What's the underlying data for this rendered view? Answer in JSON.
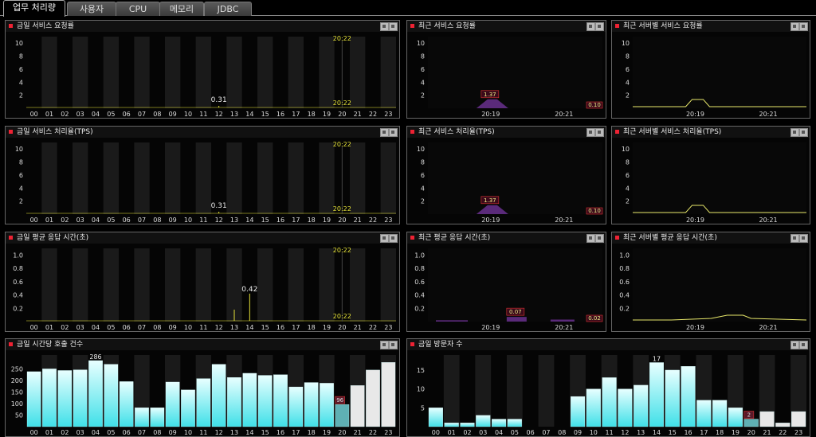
{
  "tabs": [
    {
      "label": "업무 처리량",
      "active": true
    },
    {
      "label": "사용자",
      "active": false
    },
    {
      "label": "CPU",
      "active": false
    },
    {
      "label": "메모리",
      "active": false
    },
    {
      "label": "JDBC",
      "active": false
    }
  ],
  "colors": {
    "title_dot": "#e02030",
    "yellow": "#e5e23a",
    "purple": "#5a2a7a",
    "cyan": "#40e0e8",
    "dark_band": "#1a1a1a"
  },
  "panels": {
    "today_requests": {
      "title": "금일 서비스 요청률"
    },
    "recent_requests": {
      "title": "최근 서비스 요청률"
    },
    "server_requests": {
      "title": "최근 서버별 서비스 요청률"
    },
    "today_tps": {
      "title": "금일 서비스 처리율(TPS)"
    },
    "recent_tps": {
      "title": "최근 서비스 처리율(TPS)"
    },
    "server_tps": {
      "title": "최근 서버별 서비스 처리율(TPS)"
    },
    "today_resp": {
      "title": "금일 평균 응답 시간(초)"
    },
    "recent_resp": {
      "title": "최근 평균 응답 시간(초)"
    },
    "server_resp": {
      "title": "최근 서버별 평균 응답 시간(초)"
    },
    "hourly_calls": {
      "title": "금일 시간당 호출 건수"
    },
    "visitors": {
      "title": "금일 방문자 수"
    }
  },
  "chart_data": [
    {
      "id": "today_requests",
      "type": "line",
      "x": [
        "00",
        "01",
        "02",
        "03",
        "04",
        "05",
        "06",
        "07",
        "08",
        "09",
        "10",
        "11",
        "12",
        "13",
        "14",
        "15",
        "16",
        "17",
        "18",
        "19",
        "20",
        "21",
        "22",
        "23"
      ],
      "yticks": [
        "2",
        "4",
        "6",
        "8",
        "10"
      ],
      "ylim": [
        0,
        11
      ],
      "max_label": "0.31",
      "max_hour": 12,
      "top_marker": "20:22",
      "bottom_marker": "20:22"
    },
    {
      "id": "recent_requests",
      "type": "area",
      "x": [
        "20:19",
        "20:21"
      ],
      "yticks": [
        "2",
        "4",
        "6",
        "8",
        "10"
      ],
      "ylim": [
        0,
        11
      ],
      "peak_label": "1.37",
      "current_label": "0.10"
    },
    {
      "id": "server_requests",
      "type": "line",
      "x": [
        "20:19",
        "20:21"
      ],
      "yticks": [
        "2",
        "4",
        "6",
        "8",
        "10"
      ],
      "ylim": [
        0,
        11
      ]
    },
    {
      "id": "today_tps",
      "type": "line",
      "x": [
        "00",
        "01",
        "02",
        "03",
        "04",
        "05",
        "06",
        "07",
        "08",
        "09",
        "10",
        "11",
        "12",
        "13",
        "14",
        "15",
        "16",
        "17",
        "18",
        "19",
        "20",
        "21",
        "22",
        "23"
      ],
      "yticks": [
        "2",
        "4",
        "6",
        "8",
        "10"
      ],
      "ylim": [
        0,
        11
      ],
      "max_label": "0.31",
      "max_hour": 12,
      "top_marker": "20:22",
      "bottom_marker": "20:22"
    },
    {
      "id": "recent_tps",
      "type": "area",
      "x": [
        "20:19",
        "20:21"
      ],
      "yticks": [
        "2",
        "4",
        "6",
        "8",
        "10"
      ],
      "ylim": [
        0,
        11
      ],
      "peak_label": "1.37",
      "current_label": "0.10"
    },
    {
      "id": "server_tps",
      "type": "line",
      "x": [
        "20:19",
        "20:21"
      ],
      "yticks": [
        "2",
        "4",
        "6",
        "8",
        "10"
      ],
      "ylim": [
        0,
        11
      ]
    },
    {
      "id": "today_resp",
      "type": "line",
      "x": [
        "00",
        "01",
        "02",
        "03",
        "04",
        "05",
        "06",
        "07",
        "08",
        "09",
        "10",
        "11",
        "12",
        "13",
        "14",
        "15",
        "16",
        "17",
        "18",
        "19",
        "20",
        "21",
        "22",
        "23"
      ],
      "yticks": [
        "0.2",
        "0.4",
        "0.6",
        "0.8",
        "1.0"
      ],
      "ylim": [
        0,
        1.1
      ],
      "max_label": "0.42",
      "max_hour": 14,
      "top_marker": "20:22",
      "bottom_marker": "20:22"
    },
    {
      "id": "recent_resp",
      "type": "area",
      "x": [
        "20:19",
        "20:21"
      ],
      "yticks": [
        "0.2",
        "0.4",
        "0.6",
        "0.8",
        "1.0"
      ],
      "ylim": [
        0,
        1.1
      ],
      "peak_label": "0.07",
      "current_label": "0.02"
    },
    {
      "id": "server_resp",
      "type": "line",
      "x": [
        "20:19",
        "20:21"
      ],
      "yticks": [
        "0.2",
        "0.4",
        "0.6",
        "0.8",
        "1.0"
      ],
      "ylim": [
        0,
        1.1
      ]
    },
    {
      "id": "hourly_calls",
      "type": "bar",
      "categories": [
        "00",
        "01",
        "02",
        "03",
        "04",
        "05",
        "06",
        "07",
        "08",
        "09",
        "10",
        "11",
        "12",
        "13",
        "14",
        "15",
        "16",
        "17",
        "18",
        "19",
        "20",
        "21",
        "22",
        "23"
      ],
      "values": [
        238,
        250,
        243,
        246,
        286,
        270,
        195,
        82,
        82,
        193,
        159,
        208,
        270,
        213,
        231,
        222,
        225,
        172,
        191,
        188,
        96,
        178,
        245,
        278
      ],
      "yticks": [
        "50",
        "100",
        "150",
        "200",
        "250"
      ],
      "ylim": [
        0,
        310
      ],
      "max_label": "286",
      "current_label": "96",
      "current_hour": 20
    },
    {
      "id": "visitors",
      "type": "bar",
      "categories": [
        "00",
        "01",
        "02",
        "03",
        "04",
        "05",
        "06",
        "07",
        "08",
        "09",
        "10",
        "11",
        "12",
        "13",
        "14",
        "15",
        "16",
        "17",
        "18",
        "19",
        "20",
        "21",
        "22",
        "23"
      ],
      "values": [
        5,
        1,
        1,
        3,
        2,
        2,
        0,
        0,
        0,
        8,
        10,
        13,
        10,
        11,
        17,
        15,
        16,
        7,
        7,
        5,
        2,
        4,
        1,
        4
      ],
      "yticks": [
        "5",
        "10",
        "15"
      ],
      "ylim": [
        0,
        19
      ],
      "max_label": "17",
      "current_label": "2",
      "current_hour": 20
    }
  ]
}
